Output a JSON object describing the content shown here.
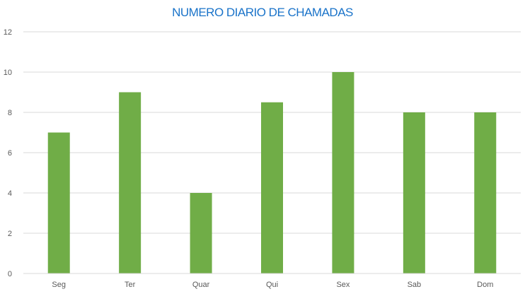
{
  "chart_data": {
    "type": "bar",
    "title": "NUMERO DIARIO DE CHAMADAS",
    "categories": [
      "Seg",
      "Ter",
      "Quar",
      "Qui",
      "Sex",
      "Sab",
      "Dom"
    ],
    "values": [
      7,
      9,
      4,
      8.5,
      10,
      8,
      8
    ],
    "y_ticks": [
      "0",
      "2",
      "4",
      "6",
      "8",
      "10",
      "12"
    ],
    "ylim": [
      0,
      12
    ],
    "xlabel": "",
    "ylabel": "",
    "grid": true,
    "legend": "none",
    "bar_color": "#70ad47",
    "grid_color": "#d9d9d9",
    "title_color": "#1a73c9"
  }
}
